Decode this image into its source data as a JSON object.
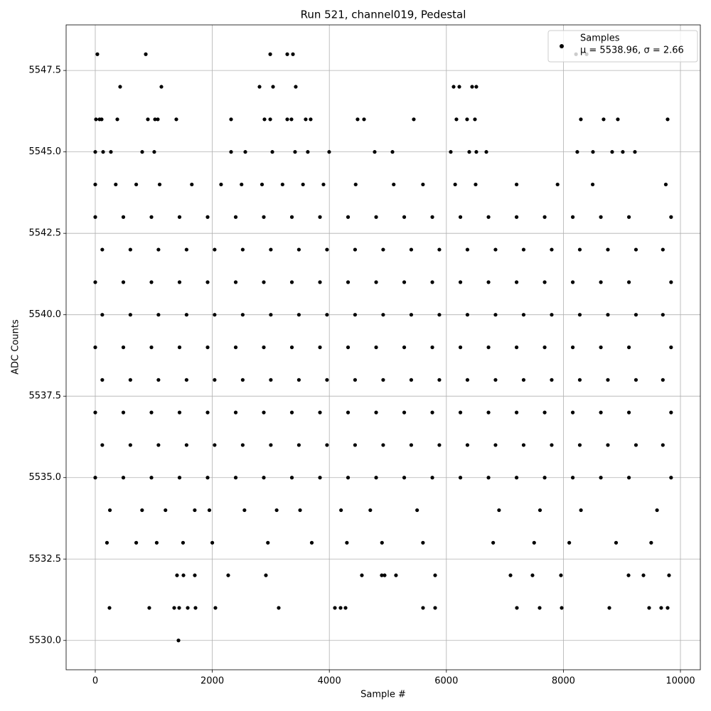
{
  "chart_data": {
    "type": "scatter",
    "title": "Run 521, channel019, Pedestal",
    "xlabel": "Sample #",
    "ylabel": "ADC Counts",
    "annotation": "μ = 5538.96, σ = 2.66",
    "legend": "upper right",
    "grid": true,
    "xlim": [
      -498,
      10340
    ],
    "ylim": [
      5529.1,
      5548.9
    ],
    "xticks": [
      0,
      2000,
      4000,
      6000,
      8000,
      10000
    ],
    "yticks": [
      {
        "value": 5530,
        "label": "5530.0"
      },
      5532.5,
      {
        "value": 5535,
        "label": "5535.0"
      },
      5537.5,
      {
        "value": 5540,
        "label": "5540.0"
      },
      5542.5,
      {
        "value": 5545,
        "label": "5545.0"
      },
      5547.5
    ],
    "x": [
      36,
      863,
      2990,
      3281,
      3378,
      8215,
      8397,
      425,
      1130,
      2807,
      3038,
      3426,
      6124,
      6221,
      6440,
      6512,
      12,
      73,
      109,
      377,
      899,
      1021,
      1069,
      1385,
      2321,
      2892,
      2990,
      3281,
      3353,
      3596,
      3681,
      4483,
      4593,
      5443,
      6172,
      6354,
      6488,
      8298,
      8687,
      8930,
      9781,
      0,
      134,
      267,
      802,
      1008,
      2321,
      2564,
      3026,
      3414,
      3632,
      3997,
      4775,
      5079,
      6075,
      6391,
      6512,
      6683,
      8237,
      8505,
      8833,
      9015,
      9222,
      0,
      350,
      700,
      1100,
      1650,
      2150,
      2500,
      2850,
      3200,
      3550,
      3900,
      4450,
      5100,
      5600,
      6150,
      6500,
      7200,
      7900,
      8500,
      9750,
      0,
      480,
      960,
      1440,
      1920,
      2400,
      2880,
      3360,
      3840,
      4320,
      4800,
      5280,
      5760,
      6240,
      6720,
      7200,
      7680,
      8160,
      8640,
      9120,
      9840,
      120,
      600,
      1080,
      1560,
      2040,
      2520,
      3000,
      3480,
      3960,
      4440,
      4920,
      5400,
      5880,
      6360,
      6840,
      7320,
      7800,
      8280,
      8760,
      9240,
      9700,
      0,
      480,
      960,
      1440,
      1920,
      2400,
      2880,
      3360,
      3840,
      4320,
      4800,
      5280,
      5760,
      6240,
      6720,
      7200,
      7680,
      8160,
      8640,
      9120,
      9840,
      120,
      600,
      1080,
      1560,
      2040,
      2520,
      3000,
      3480,
      3960,
      4440,
      4920,
      5400,
      5880,
      6360,
      6840,
      7320,
      7800,
      8280,
      8760,
      9240,
      9700,
      0,
      480,
      960,
      1440,
      1920,
      2400,
      2880,
      3360,
      3840,
      4320,
      4800,
      5280,
      5760,
      6240,
      6720,
      7200,
      7680,
      8160,
      8640,
      9120,
      9840,
      120,
      600,
      1080,
      1560,
      2040,
      2520,
      3000,
      3480,
      3960,
      4440,
      4920,
      5400,
      5880,
      6360,
      6840,
      7320,
      7800,
      8280,
      8760,
      9240,
      9700,
      0,
      480,
      960,
      1440,
      1920,
      2400,
      2880,
      3360,
      3840,
      4320,
      4800,
      5280,
      5760,
      6240,
      6720,
      7200,
      7680,
      8160,
      8640,
      9120,
      9840,
      120,
      600,
      1080,
      1560,
      2040,
      2520,
      3000,
      3480,
      3960,
      4440,
      4920,
      5400,
      5880,
      6360,
      6840,
      7320,
      7800,
      8280,
      8760,
      9240,
      9700,
      0,
      480,
      960,
      1440,
      1920,
      2400,
      2880,
      3360,
      3840,
      4320,
      4800,
      5280,
      5760,
      6240,
      6720,
      7200,
      7680,
      8160,
      8640,
      9120,
      9840,
      250,
      800,
      1200,
      1700,
      1950,
      2550,
      3100,
      3500,
      4200,
      4700,
      5500,
      6900,
      7600,
      8300,
      9600,
      200,
      700,
      1050,
      1500,
      2000,
      2950,
      3700,
      4300,
      4900,
      5600,
      6800,
      7500,
      8100,
      8900,
      9500,
      1397,
      1507,
      1701,
      2272,
      2916,
      4556,
      4896,
      4945,
      5139,
      5808,
      7096,
      7472,
      7958,
      9113,
      9368,
      9805,
      243,
      923,
      1349,
      1434,
      1580,
      1713,
      2053,
      3135,
      4095,
      4192,
      4277,
      5601,
      5808,
      7205,
      7594,
      7971,
      8785,
      9465,
      9671,
      9781,
      1422
    ],
    "series": [
      {
        "name": "Samples",
        "color": "#000000",
        "values": [
          5548,
          5548,
          5548,
          5548,
          5548,
          5548,
          5548,
          5547,
          5547,
          5547,
          5547,
          5547,
          5547,
          5547,
          5547,
          5547,
          5546,
          5546,
          5546,
          5546,
          5546,
          5546,
          5546,
          5546,
          5546,
          5546,
          5546,
          5546,
          5546,
          5546,
          5546,
          5546,
          5546,
          5546,
          5546,
          5546,
          5546,
          5546,
          5546,
          5546,
          5546,
          5545,
          5545,
          5545,
          5545,
          5545,
          5545,
          5545,
          5545,
          5545,
          5545,
          5545,
          5545,
          5545,
          5545,
          5545,
          5545,
          5545,
          5545,
          5545,
          5545,
          5545,
          5545,
          5544,
          5544,
          5544,
          5544,
          5544,
          5544,
          5544,
          5544,
          5544,
          5544,
          5544,
          5544,
          5544,
          5544,
          5544,
          5544,
          5544,
          5544,
          5544,
          5544,
          5543,
          5543,
          5543,
          5543,
          5543,
          5543,
          5543,
          5543,
          5543,
          5543,
          5543,
          5543,
          5543,
          5543,
          5543,
          5543,
          5543,
          5543,
          5543,
          5543,
          5543,
          5542,
          5542,
          5542,
          5542,
          5542,
          5542,
          5542,
          5542,
          5542,
          5542,
          5542,
          5542,
          5542,
          5542,
          5542,
          5542,
          5542,
          5542,
          5542,
          5542,
          5542,
          5541,
          5541,
          5541,
          5541,
          5541,
          5541,
          5541,
          5541,
          5541,
          5541,
          5541,
          5541,
          5541,
          5541,
          5541,
          5541,
          5541,
          5541,
          5541,
          5541,
          5541,
          5540,
          5540,
          5540,
          5540,
          5540,
          5540,
          5540,
          5540,
          5540,
          5540,
          5540,
          5540,
          5540,
          5540,
          5540,
          5540,
          5540,
          5540,
          5540,
          5540,
          5540,
          5539,
          5539,
          5539,
          5539,
          5539,
          5539,
          5539,
          5539,
          5539,
          5539,
          5539,
          5539,
          5539,
          5539,
          5539,
          5539,
          5539,
          5539,
          5539,
          5539,
          5539,
          5538,
          5538,
          5538,
          5538,
          5538,
          5538,
          5538,
          5538,
          5538,
          5538,
          5538,
          5538,
          5538,
          5538,
          5538,
          5538,
          5538,
          5538,
          5538,
          5538,
          5538,
          5537,
          5537,
          5537,
          5537,
          5537,
          5537,
          5537,
          5537,
          5537,
          5537,
          5537,
          5537,
          5537,
          5537,
          5537,
          5537,
          5537,
          5537,
          5537,
          5537,
          5537,
          5536,
          5536,
          5536,
          5536,
          5536,
          5536,
          5536,
          5536,
          5536,
          5536,
          5536,
          5536,
          5536,
          5536,
          5536,
          5536,
          5536,
          5536,
          5536,
          5536,
          5536,
          5535,
          5535,
          5535,
          5535,
          5535,
          5535,
          5535,
          5535,
          5535,
          5535,
          5535,
          5535,
          5535,
          5535,
          5535,
          5535,
          5535,
          5535,
          5535,
          5535,
          5535,
          5534,
          5534,
          5534,
          5534,
          5534,
          5534,
          5534,
          5534,
          5534,
          5534,
          5534,
          5534,
          5534,
          5534,
          5534,
          5533,
          5533,
          5533,
          5533,
          5533,
          5533,
          5533,
          5533,
          5533,
          5533,
          5533,
          5533,
          5533,
          5533,
          5533,
          5532,
          5532,
          5532,
          5532,
          5532,
          5532,
          5532,
          5532,
          5532,
          5532,
          5532,
          5532,
          5532,
          5532,
          5532,
          5532,
          5531,
          5531,
          5531,
          5531,
          5531,
          5531,
          5531,
          5531,
          5531,
          5531,
          5531,
          5531,
          5531,
          5531,
          5531,
          5531,
          5531,
          5531,
          5531,
          5531,
          5530
        ]
      }
    ]
  }
}
